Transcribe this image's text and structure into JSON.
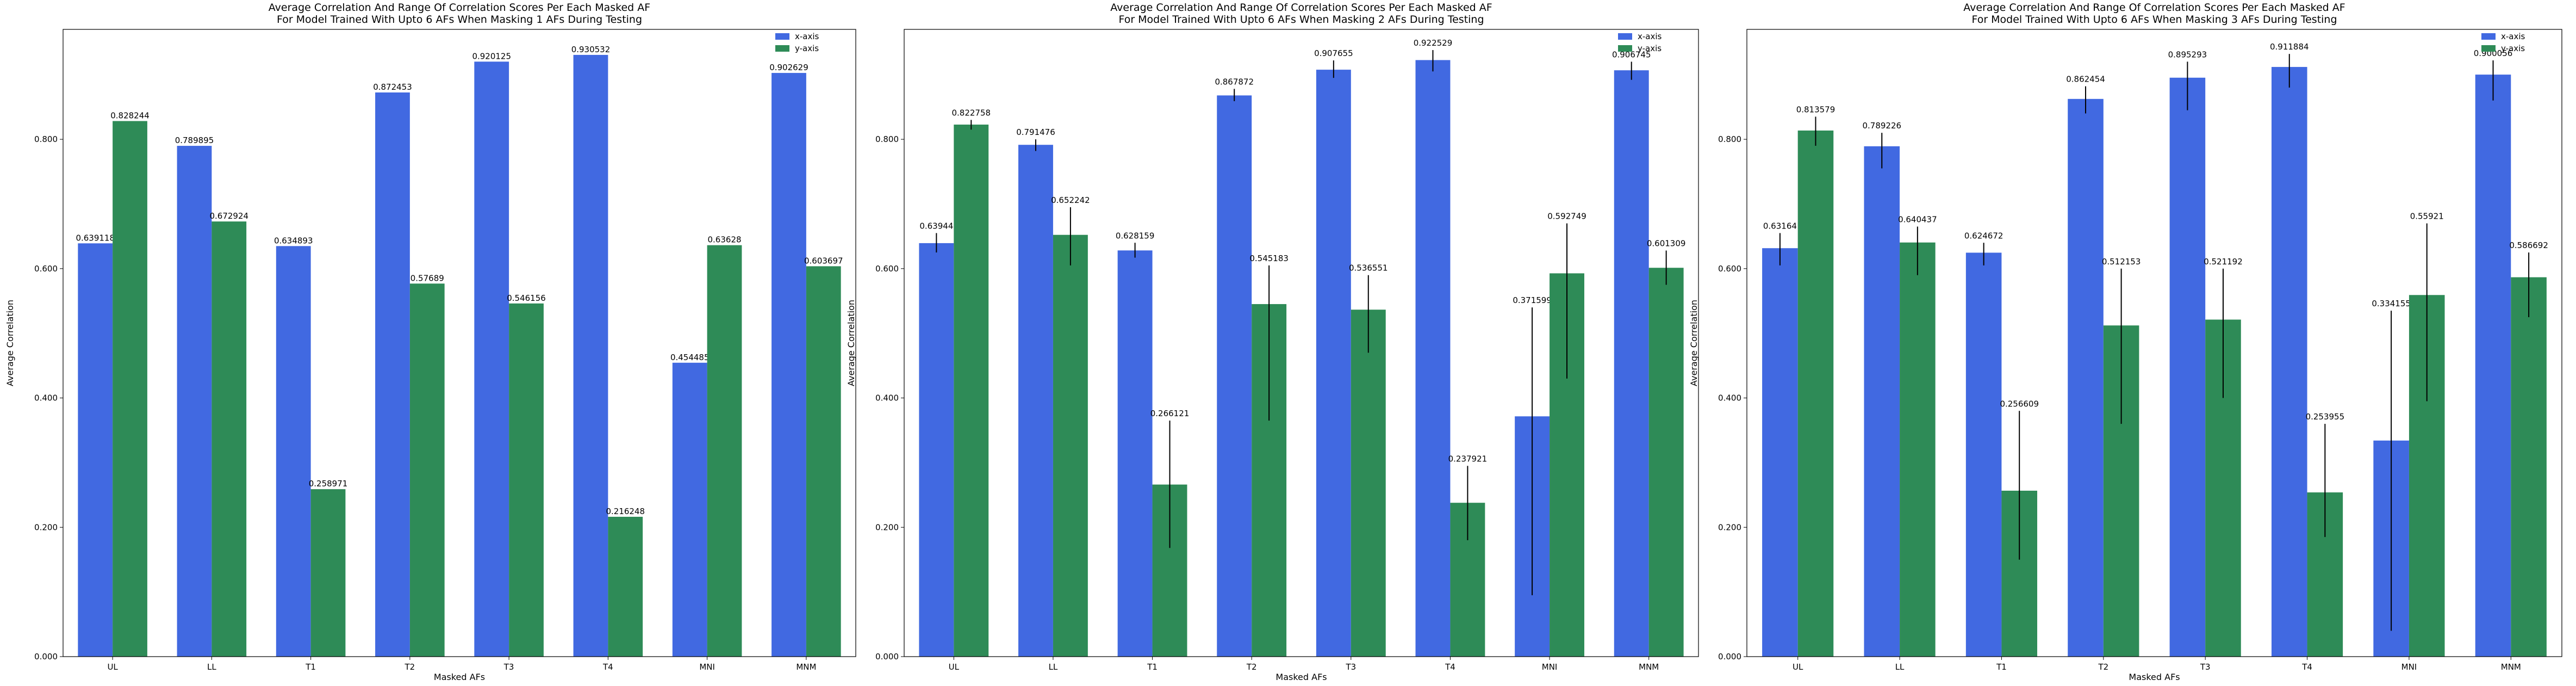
{
  "colors": {
    "x_axis": "#4169e1",
    "y_axis": "#2e8b57",
    "errorbar": "#000000"
  },
  "chart_data": [
    {
      "type": "bar",
      "title": "Average Correlation And Range Of Correlation Scores Per Each Masked AF",
      "subtitle": "For Model Trained With Upto 6 AFs When Masking 1 AFs During Testing",
      "xlabel": "Masked AFs",
      "ylabel": "Average Correlation",
      "ylim": [
        0,
        0.97
      ],
      "yticks": [
        "0.000",
        "0.200",
        "0.400",
        "0.600",
        "0.800"
      ],
      "categories": [
        "UL",
        "LL",
        "T1",
        "T2",
        "T3",
        "T4",
        "MNI",
        "MNM"
      ],
      "legend_position": "top-right",
      "series": [
        {
          "name": "x-axis",
          "values": [
            0.639118,
            0.789895,
            0.634893,
            0.872453,
            0.920125,
            0.930532,
            0.454485,
            0.902629
          ],
          "labels": [
            "0.639118",
            "0.789895",
            "0.634893",
            "0.872453",
            "0.920125",
            "0.930532",
            "0.454485",
            "0.902629"
          ],
          "err": null
        },
        {
          "name": "y-axis",
          "values": [
            0.828244,
            0.672924,
            0.258971,
            0.57689,
            0.546156,
            0.216248,
            0.63628,
            0.603697
          ],
          "labels": [
            "0.828244",
            "0.672924",
            "0.258971",
            "0.57689",
            "0.546156",
            "0.216248",
            "0.63628",
            "0.603697"
          ],
          "err": null
        }
      ]
    },
    {
      "type": "bar",
      "title": "Average Correlation And Range Of Correlation Scores Per Each Masked AF",
      "subtitle": "For Model Trained With Upto 6 AFs When Masking 2 AFs During Testing",
      "xlabel": "Masked AFs",
      "ylabel": "Average Correlation",
      "ylim": [
        0,
        0.97
      ],
      "yticks": [
        "0.000",
        "0.200",
        "0.400",
        "0.600",
        "0.800"
      ],
      "categories": [
        "UL",
        "LL",
        "T1",
        "T2",
        "T3",
        "T4",
        "MNI",
        "MNM"
      ],
      "legend_position": "top-right",
      "series": [
        {
          "name": "x-axis",
          "values": [
            0.63944,
            0.791476,
            0.628159,
            0.867872,
            0.907655,
            0.922529,
            0.371599,
            0.906745
          ],
          "labels": [
            "0.63944",
            "0.791476",
            "0.628159",
            "0.867872",
            "0.907655",
            "0.922529",
            "0.371599",
            "0.906745"
          ],
          "err": [
            [
              0.625,
              0.655
            ],
            [
              0.782,
              0.8
            ],
            [
              0.617,
              0.64
            ],
            [
              0.859,
              0.878
            ],
            [
              0.895,
              0.922
            ],
            [
              0.905,
              0.938
            ],
            [
              0.095,
              0.54
            ],
            [
              0.892,
              0.92
            ]
          ]
        },
        {
          "name": "y-axis",
          "values": [
            0.822758,
            0.652242,
            0.266121,
            0.545183,
            0.536551,
            0.237921,
            0.592749,
            0.601309
          ],
          "labels": [
            "0.822758",
            "0.652242",
            "0.266121",
            "0.545183",
            "0.536551",
            "0.237921",
            "0.592749",
            "0.601309"
          ],
          "err": [
            [
              0.815,
              0.83
            ],
            [
              0.605,
              0.695
            ],
            [
              0.168,
              0.365
            ],
            [
              0.365,
              0.605
            ],
            [
              0.47,
              0.59
            ],
            [
              0.18,
              0.295
            ],
            [
              0.43,
              0.67
            ],
            [
              0.575,
              0.628
            ]
          ]
        }
      ]
    },
    {
      "type": "bar",
      "title": "Average Correlation And Range Of Correlation Scores Per Each Masked AF",
      "subtitle": "For Model Trained With Upto 6 AFs When Masking 3 AFs During Testing",
      "xlabel": "Masked AFs",
      "ylabel": "Average Correlation",
      "ylim": [
        0,
        0.97
      ],
      "yticks": [
        "0.000",
        "0.200",
        "0.400",
        "0.600",
        "0.800"
      ],
      "categories": [
        "UL",
        "LL",
        "T1",
        "T2",
        "T3",
        "T4",
        "MNI",
        "MNM"
      ],
      "legend_position": "top-right",
      "series": [
        {
          "name": "x-axis",
          "values": [
            0.63164,
            0.789226,
            0.624672,
            0.862454,
            0.895293,
            0.911884,
            0.334155,
            0.900056
          ],
          "labels": [
            "0.63164",
            "0.789226",
            "0.624672",
            "0.862454",
            "0.895293",
            "0.911884",
            "0.334155",
            "0.900056"
          ],
          "err": [
            [
              0.605,
              0.655
            ],
            [
              0.755,
              0.81
            ],
            [
              0.605,
              0.64
            ],
            [
              0.84,
              0.882
            ],
            [
              0.845,
              0.92
            ],
            [
              0.88,
              0.932
            ],
            [
              0.04,
              0.535
            ],
            [
              0.86,
              0.922
            ]
          ]
        },
        {
          "name": "y-axis",
          "values": [
            0.813579,
            0.640437,
            0.256609,
            0.512153,
            0.521192,
            0.253955,
            0.55921,
            0.586692
          ],
          "labels": [
            "0.813579",
            "0.640437",
            "0.256609",
            "0.512153",
            "0.521192",
            "0.253955",
            "0.55921",
            "0.586692"
          ],
          "err": [
            [
              0.79,
              0.835
            ],
            [
              0.59,
              0.665
            ],
            [
              0.15,
              0.38
            ],
            [
              0.36,
              0.6
            ],
            [
              0.4,
              0.6
            ],
            [
              0.185,
              0.36
            ],
            [
              0.395,
              0.67
            ],
            [
              0.525,
              0.625
            ]
          ]
        }
      ]
    }
  ]
}
